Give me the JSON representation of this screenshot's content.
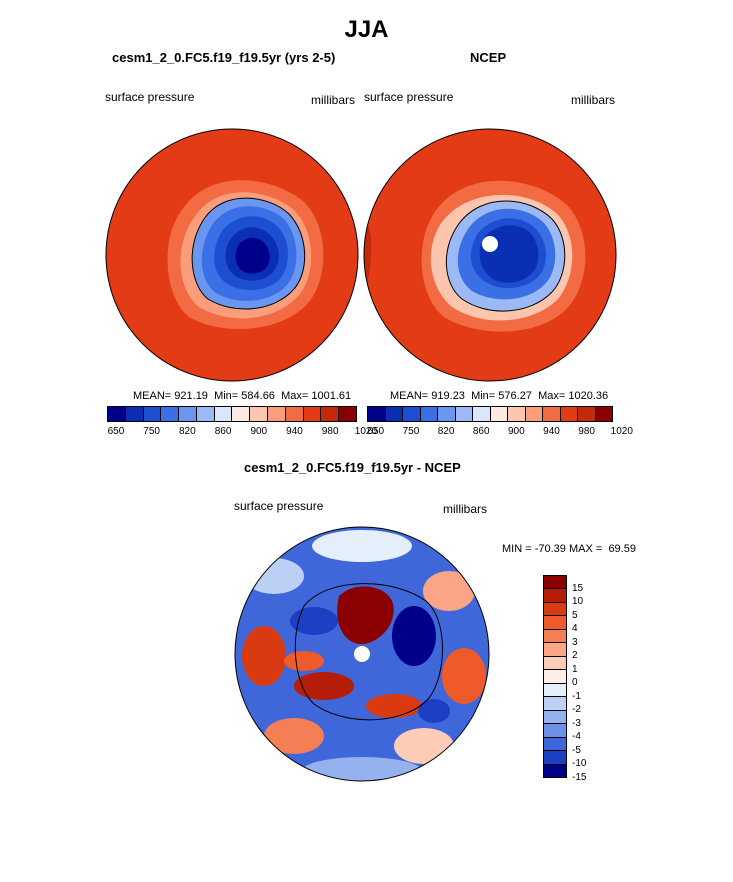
{
  "figure": {
    "title": "JJA"
  },
  "chart_data": [
    {
      "type": "heatmap",
      "title": "cesm1_2_0.FC5.f19_f19.5yr (yrs 2-5)",
      "left_label": "surface pressure",
      "right_label": "millibars",
      "stats": {
        "mean_label": "MEAN=",
        "mean": "921.19",
        "min_label": "Min=",
        "min": "584.66",
        "max_label": "Max=",
        "max": "1001.61"
      },
      "colorbar": {
        "colors": [
          "#00008b",
          "#0a2fb4",
          "#1d4ed1",
          "#3b6fe6",
          "#6a96f0",
          "#9bbaf5",
          "#d9e6fb",
          "#fde9df",
          "#fcc5ad",
          "#f99d7a",
          "#f26b43",
          "#e43b17",
          "#c22a0a",
          "#8b0000"
        ],
        "tick_labels": [
          "650",
          "750",
          "820",
          "860",
          "900",
          "940",
          "980",
          "1020"
        ]
      }
    },
    {
      "type": "heatmap",
      "title": "NCEP",
      "left_label": "surface pressure",
      "right_label": "millibars",
      "stats": {
        "mean_label": "MEAN=",
        "mean": "919.23",
        "min_label": "Min=",
        "min": "576.27",
        "max_label": "Max=",
        "max": "1020.36"
      },
      "colorbar": {
        "colors": [
          "#00008b",
          "#0a2fb4",
          "#1d4ed1",
          "#3b6fe6",
          "#6a96f0",
          "#9bbaf5",
          "#d9e6fb",
          "#fde9df",
          "#fcc5ad",
          "#f99d7a",
          "#f26b43",
          "#e43b17",
          "#c22a0a",
          "#8b0000"
        ],
        "tick_labels": [
          "650",
          "750",
          "820",
          "860",
          "900",
          "940",
          "980",
          "1020"
        ]
      }
    },
    {
      "type": "heatmap",
      "title": "cesm1_2_0.FC5.f19_f19.5yr - NCEP",
      "left_label": "surface pressure",
      "right_label": "millibars",
      "stats": {
        "min_label": "MIN =",
        "min": "-70.39",
        "max_label": "MAX =",
        "max": "69.59"
      },
      "colorbar": {
        "colors": [
          "#8b0000",
          "#b51d06",
          "#d93a12",
          "#ef5a2a",
          "#f57f55",
          "#f9a586",
          "#fcccb7",
          "#fdeee6",
          "#e5eefb",
          "#bcd0f5",
          "#94b2ee",
          "#6c91e6",
          "#3f67da",
          "#1d3fc4",
          "#00008b"
        ],
        "tick_labels": [
          "15",
          "10",
          "5",
          "4",
          "3",
          "2",
          "1",
          "0",
          "-1",
          "-2",
          "-3",
          "-4",
          "-5",
          "-10",
          "-15"
        ]
      }
    }
  ]
}
